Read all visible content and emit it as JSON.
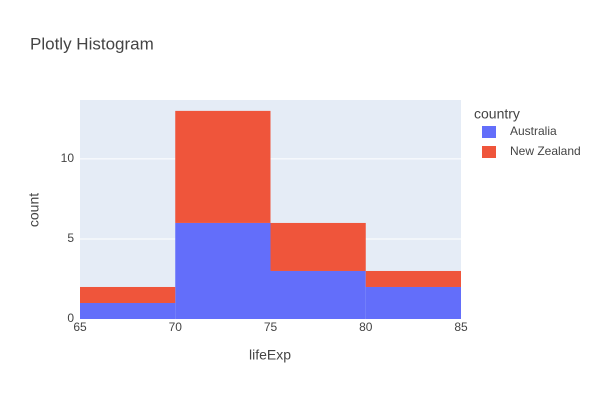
{
  "chart_data": {
    "type": "histogram",
    "title": "Plotly Histogram",
    "x_label": "lifeExp",
    "y_label": "count",
    "legend_title": "country",
    "bins": [
      65,
      70,
      75,
      80,
      85
    ],
    "series": [
      {
        "name": "Australia",
        "color": "#636efa",
        "values": [
          1,
          6,
          3,
          2
        ]
      },
      {
        "name": "New Zealand",
        "color": "#ef553b",
        "values": [
          1,
          7,
          3,
          1
        ]
      }
    ],
    "stacked": true,
    "xlim": [
      65,
      85
    ],
    "xticks": [
      65,
      70,
      75,
      80,
      85
    ],
    "ylim": [
      0,
      13.68
    ],
    "yticks": [
      0,
      5,
      10
    ],
    "grid": true,
    "legend": "right"
  }
}
